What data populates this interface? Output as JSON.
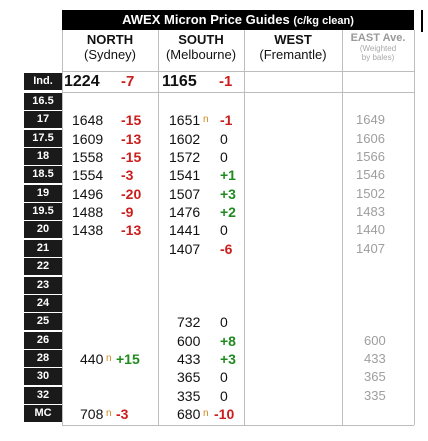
{
  "title": {
    "main": "AWEX Micron Price Guides",
    "unit": "(c/kg clean)"
  },
  "headers": {
    "north": {
      "name": "NORTH",
      "city": "(Sydney)"
    },
    "south": {
      "name": "SOUTH",
      "city": "(Melbourne)"
    },
    "west": {
      "name": "WEST",
      "city": "(Fremantle)"
    },
    "east": {
      "name": "EAST Ave.",
      "sub1": "(Weighted",
      "sub2": "by bales)"
    }
  },
  "index_row": {
    "label": "Ind.",
    "north_price": "1224",
    "north_change": "-7",
    "south_price": "1165",
    "south_change": "-1"
  },
  "rows": [
    {
      "label": "16.5",
      "north": "",
      "north_chg": "",
      "north_dir": "",
      "north_n": "",
      "south": "",
      "south_chg": "",
      "south_dir": "",
      "south_n": "",
      "east": ""
    },
    {
      "label": "17",
      "north": "1648",
      "north_chg": "-15",
      "north_dir": "down",
      "north_n": "",
      "south": "1651",
      "south_chg": "-1",
      "south_dir": "down",
      "south_n": "n",
      "east": "1649"
    },
    {
      "label": "17.5",
      "north": "1609",
      "north_chg": "-13",
      "north_dir": "down",
      "north_n": "",
      "south": "1602",
      "south_chg": "0",
      "south_dir": "flat",
      "south_n": "",
      "east": "1606"
    },
    {
      "label": "18",
      "north": "1558",
      "north_chg": "-15",
      "north_dir": "down",
      "north_n": "",
      "south": "1572",
      "south_chg": "0",
      "south_dir": "flat",
      "south_n": "",
      "east": "1566"
    },
    {
      "label": "18.5",
      "north": "1554",
      "north_chg": "-3",
      "north_dir": "down",
      "north_n": "",
      "south": "1541",
      "south_chg": "+1",
      "south_dir": "up",
      "south_n": "",
      "east": "1546"
    },
    {
      "label": "19",
      "north": "1496",
      "north_chg": "-20",
      "north_dir": "down",
      "north_n": "",
      "south": "1507",
      "south_chg": "+3",
      "south_dir": "up",
      "south_n": "",
      "east": "1502"
    },
    {
      "label": "19.5",
      "north": "1488",
      "north_chg": "-9",
      "north_dir": "down",
      "north_n": "",
      "south": "1476",
      "south_chg": "+2",
      "south_dir": "up",
      "south_n": "",
      "east": "1483"
    },
    {
      "label": "20",
      "north": "1438",
      "north_chg": "-13",
      "north_dir": "down",
      "north_n": "",
      "south": "1441",
      "south_chg": "0",
      "south_dir": "flat",
      "south_n": "",
      "east": "1440"
    },
    {
      "label": "21",
      "north": "",
      "north_chg": "",
      "north_dir": "",
      "north_n": "",
      "south": "1407",
      "south_chg": "-6",
      "south_dir": "down",
      "south_n": "",
      "east": "1407"
    },
    {
      "label": "22",
      "north": "",
      "north_chg": "",
      "north_dir": "",
      "north_n": "",
      "south": "",
      "south_chg": "",
      "south_dir": "",
      "south_n": "",
      "east": ""
    },
    {
      "label": "23",
      "north": "",
      "north_chg": "",
      "north_dir": "",
      "north_n": "",
      "south": "",
      "south_chg": "",
      "south_dir": "",
      "south_n": "",
      "east": ""
    },
    {
      "label": "24",
      "north": "",
      "north_chg": "",
      "north_dir": "",
      "north_n": "",
      "south": "",
      "south_chg": "",
      "south_dir": "",
      "south_n": "",
      "east": ""
    },
    {
      "label": "25",
      "north": "",
      "north_chg": "",
      "north_dir": "",
      "north_n": "",
      "south": "732",
      "south_chg": "0",
      "south_dir": "flat",
      "south_n": "",
      "east": ""
    },
    {
      "label": "26",
      "north": "",
      "north_chg": "",
      "north_dir": "",
      "north_n": "",
      "south": "600",
      "south_chg": "+8",
      "south_dir": "up",
      "south_n": "",
      "east": "600"
    },
    {
      "label": "28",
      "north": "440",
      "north_chg": "+15",
      "north_dir": "up",
      "north_n": "n",
      "south": "433",
      "south_chg": "+3",
      "south_dir": "up",
      "south_n": "",
      "east": "433"
    },
    {
      "label": "30",
      "north": "",
      "north_chg": "",
      "north_dir": "",
      "north_n": "",
      "south": "365",
      "south_chg": "0",
      "south_dir": "flat",
      "south_n": "",
      "east": "365"
    },
    {
      "label": "32",
      "north": "",
      "north_chg": "",
      "north_dir": "",
      "north_n": "",
      "south": "335",
      "south_chg": "0",
      "south_dir": "flat",
      "south_n": "",
      "east": "335"
    },
    {
      "label": "MC",
      "north": "708",
      "north_chg": "-3",
      "north_dir": "down",
      "north_n": "n",
      "south": "680",
      "south_chg": "-10",
      "south_dir": "down",
      "south_n": "n",
      "east": ""
    }
  ],
  "colors": {
    "up": "#1f8a1f",
    "down": "#cc1d1d",
    "noted": "#d4871e",
    "east": "#9e9e9e"
  }
}
